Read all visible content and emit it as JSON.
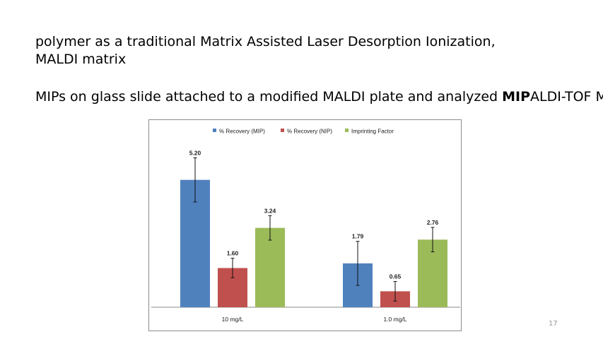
{
  "slide": {
    "line1": "polymer as a traditional Matrix Assisted Laser Desorption Ionization,",
    "line2": "MALDI matrix",
    "line3_prefix": "MIPs on glass slide attached to a modified MALDI plate and analyzed ",
    "line3_bold": "MIP",
    "line3_suffix": "ALDI-TOF MS",
    "page_number": "17"
  },
  "chart_data": {
    "type": "bar",
    "categories": [
      "10 mg/L",
      "1.0 mg/L"
    ],
    "series": [
      {
        "name": "% Recovery (MIP)",
        "color": "#4f81bd",
        "values": [
          5.2,
          1.79
        ],
        "labels": [
          "5.20",
          "1.79"
        ],
        "error": [
          0.9,
          0.9
        ]
      },
      {
        "name": "% Recovery (NIP)",
        "color": "#c0504d",
        "values": [
          1.6,
          0.65
        ],
        "labels": [
          "1.60",
          "0.65"
        ],
        "error": [
          0.4,
          0.4
        ]
      },
      {
        "name": "Imprinting Factor",
        "color": "#9bbb59",
        "values": [
          3.24,
          2.76
        ],
        "labels": [
          "3.24",
          "2.76"
        ],
        "error": [
          0.5,
          0.5
        ]
      }
    ],
    "ylim": [
      0,
      6.2
    ],
    "grid": false,
    "legend": "top"
  }
}
